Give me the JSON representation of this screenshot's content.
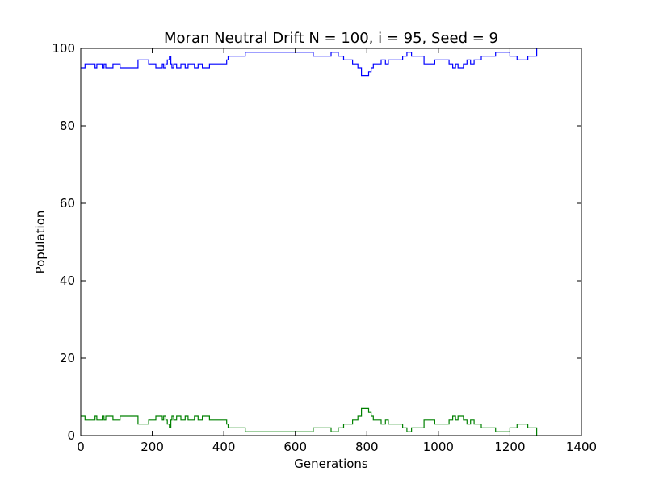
{
  "chart_data": {
    "type": "line",
    "title": "Moran Neutral Drift N = 100, i = 95, Seed = 9",
    "xlabel": "Generations",
    "ylabel": "Population",
    "xlim": [
      0,
      1400
    ],
    "ylim": [
      0,
      100
    ],
    "xticks": [
      0,
      200,
      400,
      600,
      800,
      1000,
      1200,
      1400
    ],
    "yticks": [
      0,
      20,
      40,
      60,
      80,
      100
    ],
    "grid": false,
    "legend": "none",
    "series": [
      {
        "color": "#0000ff",
        "x": [
          0,
          12,
          40,
          45,
          60,
          65,
          70,
          90,
          110,
          115,
          160,
          190,
          210,
          228,
          232,
          238,
          242,
          248,
          252,
          255,
          260,
          268,
          280,
          292,
          300,
          318,
          328,
          340,
          360,
          390,
          408,
          412,
          420,
          440,
          460,
          500,
          560,
          600,
          650,
          700,
          720,
          735,
          750,
          760,
          775,
          785,
          795,
          800,
          805,
          812,
          818,
          825,
          840,
          852,
          860,
          880,
          900,
          912,
          925,
          940,
          960,
          990,
          1030,
          1040,
          1048,
          1055,
          1070,
          1080,
          1090,
          1100,
          1120,
          1140,
          1160,
          1180,
          1200,
          1210,
          1220,
          1250,
          1270,
          1275
        ],
        "y": [
          95,
          96,
          95,
          96,
          95,
          96,
          95,
          96,
          95,
          95,
          97,
          96,
          95,
          96,
          95,
          96,
          97,
          98,
          96,
          95,
          96,
          95,
          96,
          95,
          96,
          95,
          96,
          95,
          96,
          96,
          97,
          98,
          98,
          98,
          99,
          99,
          99,
          99,
          98,
          99,
          98,
          97,
          97,
          96,
          95,
          93,
          93,
          93,
          94,
          95,
          96,
          96,
          97,
          96,
          97,
          97,
          98,
          99,
          98,
          98,
          96,
          97,
          96,
          95,
          96,
          95,
          96,
          97,
          96,
          97,
          98,
          98,
          99,
          99,
          98,
          98,
          97,
          98,
          98,
          100
        ]
      },
      {
        "color": "#008000",
        "x": [
          0,
          12,
          40,
          45,
          60,
          65,
          70,
          90,
          110,
          115,
          160,
          190,
          210,
          228,
          232,
          238,
          242,
          248,
          252,
          255,
          260,
          268,
          280,
          292,
          300,
          318,
          328,
          340,
          360,
          390,
          408,
          412,
          420,
          440,
          460,
          500,
          560,
          600,
          650,
          700,
          720,
          735,
          750,
          760,
          775,
          785,
          795,
          800,
          805,
          812,
          818,
          825,
          840,
          852,
          860,
          880,
          900,
          912,
          925,
          940,
          960,
          990,
          1030,
          1040,
          1048,
          1055,
          1070,
          1080,
          1090,
          1100,
          1120,
          1140,
          1160,
          1180,
          1200,
          1210,
          1220,
          1250,
          1270,
          1275
        ],
        "y": [
          5,
          4,
          5,
          4,
          5,
          4,
          5,
          4,
          5,
          5,
          3,
          4,
          5,
          4,
          5,
          4,
          3,
          2,
          4,
          5,
          4,
          5,
          4,
          5,
          4,
          5,
          4,
          5,
          4,
          4,
          3,
          2,
          2,
          2,
          1,
          1,
          1,
          1,
          2,
          1,
          2,
          3,
          3,
          4,
          5,
          7,
          7,
          7,
          6,
          5,
          4,
          4,
          3,
          4,
          3,
          3,
          2,
          1,
          2,
          2,
          4,
          3,
          4,
          5,
          4,
          5,
          4,
          3,
          4,
          3,
          2,
          2,
          1,
          1,
          2,
          2,
          3,
          2,
          2,
          0
        ]
      }
    ]
  }
}
